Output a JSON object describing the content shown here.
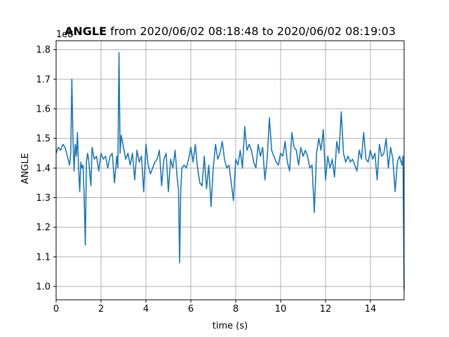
{
  "chart_data": {
    "type": "line",
    "title_bold": "ANGLE",
    "title_rest": " from 2020/06/02 08:18:48 to 2020/06/02 08:19:03",
    "xlabel": "time (s)",
    "ylabel": "ANGLE",
    "y_offset_label": "1e8",
    "xlim": [
      0,
      15.5
    ],
    "ylim": [
      0.955,
      1.83
    ],
    "x_ticks": [
      0,
      2,
      4,
      6,
      8,
      10,
      12,
      14
    ],
    "y_ticks": [
      1.0,
      1.1,
      1.2,
      1.3,
      1.4,
      1.5,
      1.6,
      1.7,
      1.8
    ],
    "grid": true,
    "color": "#1f77b4",
    "series": [
      {
        "x": [
          0,
          0.1,
          0.2,
          0.3,
          0.4,
          0.5,
          0.6,
          0.65,
          0.7,
          0.75,
          0.8,
          0.85,
          0.9,
          0.95,
          1.0,
          1.05,
          1.1,
          1.15,
          1.2,
          1.25,
          1.3,
          1.35,
          1.4,
          1.45,
          1.5,
          1.55,
          1.6,
          1.7,
          1.8,
          1.9,
          2.0,
          2.1,
          2.2,
          2.3,
          2.4,
          2.5,
          2.6,
          2.7,
          2.75,
          2.8,
          2.85,
          2.9,
          3.0,
          3.1,
          3.2,
          3.3,
          3.4,
          3.5,
          3.6,
          3.7,
          3.8,
          3.9,
          4.0,
          4.1,
          4.2,
          4.3,
          4.4,
          4.5,
          4.6,
          4.7,
          4.8,
          4.9,
          5.0,
          5.1,
          5.2,
          5.3,
          5.4,
          5.45,
          5.5,
          5.55,
          5.6,
          5.7,
          5.8,
          5.9,
          6.0,
          6.1,
          6.2,
          6.3,
          6.4,
          6.5,
          6.6,
          6.7,
          6.8,
          6.9,
          7.0,
          7.1,
          7.2,
          7.3,
          7.4,
          7.5,
          7.6,
          7.7,
          7.8,
          7.9,
          8.0,
          8.1,
          8.2,
          8.3,
          8.4,
          8.5,
          8.6,
          8.7,
          8.8,
          8.9,
          9.0,
          9.1,
          9.2,
          9.3,
          9.4,
          9.5,
          9.6,
          9.7,
          9.8,
          9.9,
          10.0,
          10.1,
          10.2,
          10.3,
          10.4,
          10.5,
          10.6,
          10.7,
          10.8,
          10.9,
          11.0,
          11.1,
          11.2,
          11.3,
          11.4,
          11.5,
          11.6,
          11.7,
          11.8,
          11.9,
          12.0,
          12.1,
          12.2,
          12.3,
          12.4,
          12.5,
          12.6,
          12.7,
          12.8,
          12.9,
          13.0,
          13.1,
          13.2,
          13.3,
          13.4,
          13.5,
          13.6,
          13.7,
          13.8,
          13.9,
          14.0,
          14.1,
          14.2,
          14.3,
          14.4,
          14.5,
          14.6,
          14.7,
          14.8,
          14.9,
          15.0,
          15.1,
          15.2,
          15.3,
          15.4,
          15.45,
          15.5
        ],
        "y": [
          1.45,
          1.47,
          1.46,
          1.48,
          1.47,
          1.44,
          1.41,
          1.45,
          1.7,
          1.5,
          1.39,
          1.48,
          1.44,
          1.52,
          1.4,
          1.32,
          1.42,
          1.4,
          1.41,
          1.3,
          1.14,
          1.42,
          1.45,
          1.43,
          1.38,
          1.34,
          1.47,
          1.43,
          1.44,
          1.39,
          1.45,
          1.43,
          1.44,
          1.4,
          1.44,
          1.45,
          1.35,
          1.44,
          1.4,
          1.79,
          1.45,
          1.51,
          1.47,
          1.43,
          1.45,
          1.41,
          1.45,
          1.36,
          1.46,
          1.42,
          1.44,
          1.32,
          1.48,
          1.41,
          1.38,
          1.4,
          1.42,
          1.43,
          1.46,
          1.34,
          1.43,
          1.45,
          1.32,
          1.43,
          1.4,
          1.46,
          1.36,
          1.33,
          1.08,
          1.32,
          1.4,
          1.41,
          1.4,
          1.43,
          1.47,
          1.42,
          1.48,
          1.4,
          1.35,
          1.34,
          1.44,
          1.33,
          1.41,
          1.27,
          1.4,
          1.48,
          1.43,
          1.45,
          1.49,
          1.43,
          1.4,
          1.41,
          1.35,
          1.29,
          1.43,
          1.41,
          1.46,
          1.4,
          1.54,
          1.46,
          1.48,
          1.46,
          1.42,
          1.4,
          1.48,
          1.44,
          1.47,
          1.36,
          1.43,
          1.57,
          1.46,
          1.44,
          1.42,
          1.41,
          1.45,
          1.44,
          1.49,
          1.42,
          1.39,
          1.52,
          1.47,
          1.46,
          1.41,
          1.47,
          1.44,
          1.46,
          1.44,
          1.4,
          1.41,
          1.25,
          1.45,
          1.5,
          1.46,
          1.53,
          1.36,
          1.44,
          1.4,
          1.43,
          1.37,
          1.49,
          1.45,
          1.59,
          1.45,
          1.42,
          1.44,
          1.42,
          1.43,
          1.41,
          1.39,
          1.46,
          1.43,
          1.52,
          1.43,
          1.42,
          1.46,
          1.43,
          1.45,
          1.36,
          1.48,
          1.44,
          1.45,
          1.5,
          1.4,
          1.47,
          1.43,
          1.32,
          1.42,
          1.44,
          1.41,
          1.44,
          0.99
        ]
      }
    ]
  }
}
